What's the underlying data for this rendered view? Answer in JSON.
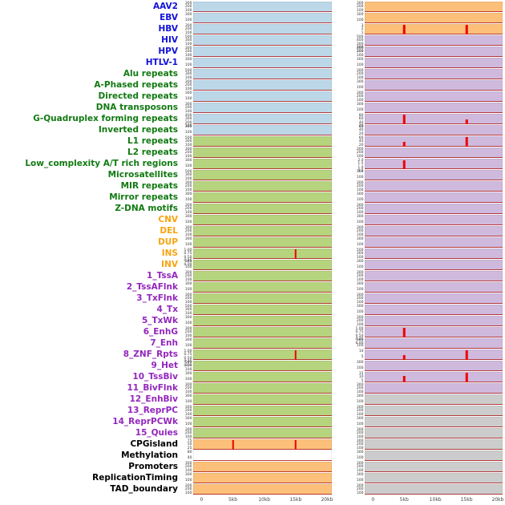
{
  "chart_data": {
    "type": "heatmap",
    "subtype": "genomic-signal-tracks",
    "title": "",
    "x_axis": {
      "range_kb": [
        0,
        20
      ],
      "ticks": [
        {
          "kb": 0,
          "label": "0"
        },
        {
          "kb": 5,
          "label": "5kb"
        },
        {
          "kb": 10,
          "label": "10kb"
        },
        {
          "kb": 15,
          "label": "15kb"
        },
        {
          "kb": 20,
          "label": "20kb"
        }
      ]
    },
    "colors": {
      "label_colors": {
        "virus": "#1212d8",
        "repeat": "#117a11",
        "sv": "#f7a410",
        "chromatin": "#9326bd",
        "other": "#000000"
      },
      "track_colors": {
        "blue": "#bcd8e8",
        "green": "#b6d37e",
        "orange": "#fcc07a",
        "purple": "#cfbade",
        "gray": "#cccccc",
        "white": "#ffffff"
      },
      "spike": "#ee0000",
      "baseline": "#b22222"
    },
    "rows": [
      {
        "label": "AAV2",
        "group": "virus",
        "left": {
          "bg": "blue",
          "yticks": [
            "300",
            "200",
            "100"
          ],
          "spikes": []
        },
        "right": {
          "bg": "orange",
          "yticks": [
            "300",
            "200",
            "100"
          ],
          "spikes": []
        }
      },
      {
        "label": "EBV",
        "group": "virus",
        "left": {
          "bg": "blue",
          "yticks": [
            "300",
            "100"
          ],
          "spikes": []
        },
        "right": {
          "bg": "orange",
          "yticks": [
            "300",
            "100"
          ],
          "spikes": []
        }
      },
      {
        "label": "HBV",
        "group": "virus",
        "left": {
          "bg": "blue",
          "yticks": [
            "300",
            "200",
            "100"
          ],
          "spikes": []
        },
        "right": {
          "bg": "orange",
          "yticks": [
            "3",
            "2",
            "1"
          ],
          "spikes": [
            {
              "kb": 5,
              "h": 0.95
            },
            {
              "kb": 15,
              "h": 0.95
            }
          ]
        }
      },
      {
        "label": "HIV",
        "group": "virus",
        "left": {
          "bg": "blue",
          "yticks": [
            "500",
            "300",
            "100"
          ],
          "spikes": []
        },
        "right": {
          "bg": "purple",
          "yticks": [
            "500",
            "400",
            "300",
            "200",
            "100"
          ],
          "spikes": []
        }
      },
      {
        "label": "HPV",
        "group": "virus",
        "left": {
          "bg": "blue",
          "yticks": [
            "300",
            "200",
            "100"
          ],
          "spikes": []
        },
        "right": {
          "bg": "purple",
          "yticks": [
            "300",
            "200",
            "100"
          ],
          "spikes": []
        }
      },
      {
        "label": "HTLV-1",
        "group": "virus",
        "left": {
          "bg": "blue",
          "yticks": [
            "300",
            "100"
          ],
          "spikes": []
        },
        "right": {
          "bg": "purple",
          "yticks": [
            "300",
            "100"
          ],
          "spikes": []
        }
      },
      {
        "label": "Alu repeats",
        "group": "repeat",
        "left": {
          "bg": "blue",
          "yticks": [
            "500",
            "300",
            "100"
          ],
          "spikes": []
        },
        "right": {
          "bg": "purple",
          "yticks": [
            "300",
            "200",
            "100"
          ],
          "spikes": []
        }
      },
      {
        "label": "A-Phased repeats",
        "group": "repeat",
        "left": {
          "bg": "blue",
          "yticks": [
            "300",
            "200",
            "100"
          ],
          "spikes": []
        },
        "right": {
          "bg": "purple",
          "yticks": [
            "300",
            "100"
          ],
          "spikes": []
        }
      },
      {
        "label": "Directed repeats",
        "group": "repeat",
        "left": {
          "bg": "blue",
          "yticks": [
            "300",
            "100"
          ],
          "spikes": []
        },
        "right": {
          "bg": "purple",
          "yticks": [
            "300",
            "200",
            "100"
          ],
          "spikes": []
        }
      },
      {
        "label": "DNA transposons",
        "group": "repeat",
        "left": {
          "bg": "blue",
          "yticks": [
            "300",
            "200",
            "100"
          ],
          "spikes": []
        },
        "right": {
          "bg": "purple",
          "yticks": [
            "300",
            "100"
          ],
          "spikes": []
        }
      },
      {
        "label": "G-Quadruplex forming repeats",
        "group": "repeat",
        "left": {
          "bg": "blue",
          "yticks": [
            "400",
            "300",
            "200",
            "100"
          ],
          "spikes": []
        },
        "right": {
          "bg": "purple",
          "yticks": [
            "80",
            "60",
            "40",
            "20"
          ],
          "spikes": [
            {
              "kb": 5,
              "h": 0.9
            },
            {
              "kb": 15,
              "h": 0.5
            }
          ]
        }
      },
      {
        "label": "Inverted repeats",
        "group": "repeat",
        "left": {
          "bg": "blue",
          "yticks": [
            "300",
            "100"
          ],
          "spikes": []
        },
        "right": {
          "bg": "purple",
          "yticks": [
            "60",
            "40",
            "20"
          ],
          "spikes": []
        }
      },
      {
        "label": "L1 repeats",
        "group": "repeat",
        "left": {
          "bg": "green",
          "yticks": [
            "500",
            "300",
            "100"
          ],
          "spikes": []
        },
        "right": {
          "bg": "purple",
          "yticks": [
            "60",
            "40",
            "20"
          ],
          "spikes": [
            {
              "kb": 5,
              "h": 0.45
            },
            {
              "kb": 15,
              "h": 0.9
            }
          ]
        }
      },
      {
        "label": "L2 repeats",
        "group": "repeat",
        "left": {
          "bg": "green",
          "yticks": [
            "300",
            "200",
            "100"
          ],
          "spikes": []
        },
        "right": {
          "bg": "purple",
          "yticks": [
            "300",
            "200",
            "100"
          ],
          "spikes": []
        }
      },
      {
        "label": "Low_complexity A/T rich regions",
        "group": "repeat",
        "left": {
          "bg": "green",
          "yticks": [
            "300",
            "100"
          ],
          "spikes": []
        },
        "right": {
          "bg": "purple",
          "yticks": [
            "2.0",
            "1.5",
            "1.0",
            "0.5"
          ],
          "spikes": [
            {
              "kb": 5,
              "h": 0.85
            }
          ]
        }
      },
      {
        "label": "Microsatellites",
        "group": "repeat",
        "left": {
          "bg": "green",
          "yticks": [
            "500",
            "300",
            "100"
          ],
          "spikes": []
        },
        "right": {
          "bg": "purple",
          "yticks": [
            "300",
            "100"
          ],
          "spikes": []
        }
      },
      {
        "label": "MIR repeats",
        "group": "repeat",
        "left": {
          "bg": "green",
          "yticks": [
            "300",
            "200",
            "100"
          ],
          "spikes": []
        },
        "right": {
          "bg": "purple",
          "yticks": [
            "300",
            "200",
            "100"
          ],
          "spikes": []
        }
      },
      {
        "label": "Mirror repeats",
        "group": "repeat",
        "left": {
          "bg": "green",
          "yticks": [
            "300",
            "100"
          ],
          "spikes": []
        },
        "right": {
          "bg": "purple",
          "yticks": [
            "300",
            "100"
          ],
          "spikes": []
        }
      },
      {
        "label": "Z-DNA motifs",
        "group": "repeat",
        "left": {
          "bg": "green",
          "yticks": [
            "300",
            "200",
            "100"
          ],
          "spikes": []
        },
        "right": {
          "bg": "purple",
          "yticks": [
            "300",
            "200",
            "100"
          ],
          "spikes": []
        }
      },
      {
        "label": "CNV",
        "group": "sv",
        "left": {
          "bg": "green",
          "yticks": [
            "300",
            "100"
          ],
          "spikes": []
        },
        "right": {
          "bg": "purple",
          "yticks": [
            "300",
            "100"
          ],
          "spikes": []
        }
      },
      {
        "label": "DEL",
        "group": "sv",
        "left": {
          "bg": "green",
          "yticks": [
            "300",
            "200",
            "100"
          ],
          "spikes": []
        },
        "right": {
          "bg": "purple",
          "yticks": [
            "300",
            "200",
            "100"
          ],
          "spikes": []
        }
      },
      {
        "label": "DUP",
        "group": "sv",
        "left": {
          "bg": "green",
          "yticks": [
            "300",
            "100"
          ],
          "spikes": []
        },
        "right": {
          "bg": "purple",
          "yticks": [
            "300",
            "100"
          ],
          "spikes": []
        }
      },
      {
        "label": "INS",
        "group": "sv",
        "left": {
          "bg": "green",
          "yticks": [
            "1.00",
            "0.75",
            "0.50",
            "0.25",
            "0.00"
          ],
          "spikes": [
            {
              "kb": 15,
              "h": 0.95
            }
          ]
        },
        "right": {
          "bg": "purple",
          "yticks": [
            "500",
            "300",
            "100"
          ],
          "spikes": []
        }
      },
      {
        "label": "INV",
        "group": "sv",
        "left": {
          "bg": "green",
          "yticks": [
            "300",
            "100"
          ],
          "spikes": []
        },
        "right": {
          "bg": "purple",
          "yticks": [
            "300",
            "100"
          ],
          "spikes": []
        }
      },
      {
        "label": "1_TssA",
        "group": "chromatin",
        "left": {
          "bg": "green",
          "yticks": [
            "300",
            "200",
            "100"
          ],
          "spikes": []
        },
        "right": {
          "bg": "purple",
          "yticks": [
            "300",
            "200",
            "100"
          ],
          "spikes": []
        }
      },
      {
        "label": "2_TssAFlnk",
        "group": "chromatin",
        "left": {
          "bg": "green",
          "yticks": [
            "300",
            "100"
          ],
          "spikes": []
        },
        "right": {
          "bg": "purple",
          "yticks": [
            "300",
            "100"
          ],
          "spikes": []
        }
      },
      {
        "label": "3_TxFlnk",
        "group": "chromatin",
        "left": {
          "bg": "green",
          "yticks": [
            "300",
            "200",
            "100"
          ],
          "spikes": []
        },
        "right": {
          "bg": "purple",
          "yticks": [
            "300",
            "200",
            "100"
          ],
          "spikes": []
        }
      },
      {
        "label": "4_Tx",
        "group": "chromatin",
        "left": {
          "bg": "green",
          "yticks": [
            "500",
            "300",
            "100"
          ],
          "spikes": []
        },
        "right": {
          "bg": "purple",
          "yticks": [
            "300",
            "100"
          ],
          "spikes": []
        }
      },
      {
        "label": "5_TxWk",
        "group": "chromatin",
        "left": {
          "bg": "green",
          "yticks": [
            "300",
            "100"
          ],
          "spikes": []
        },
        "right": {
          "bg": "purple",
          "yticks": [
            "300",
            "200",
            "100"
          ],
          "spikes": []
        }
      },
      {
        "label": "6_EnhG",
        "group": "chromatin",
        "left": {
          "bg": "green",
          "yticks": [
            "300",
            "200",
            "100"
          ],
          "spikes": []
        },
        "right": {
          "bg": "purple",
          "yticks": [
            "1.00",
            "0.75",
            "0.50",
            "0.25",
            "0.00"
          ],
          "spikes": [
            {
              "kb": 5,
              "h": 0.9
            }
          ]
        }
      },
      {
        "label": "7_Enh",
        "group": "chromatin",
        "left": {
          "bg": "green",
          "yticks": [
            "300",
            "100"
          ],
          "spikes": []
        },
        "right": {
          "bg": "purple",
          "yticks": [
            "300",
            "100"
          ],
          "spikes": []
        }
      },
      {
        "label": "8_ZNF_Rpts",
        "group": "chromatin",
        "left": {
          "bg": "green",
          "yticks": [
            "1.00",
            "0.75",
            "0.50",
            "0.25",
            "0.00"
          ],
          "spikes": [
            {
              "kb": 15,
              "h": 0.95
            }
          ]
        },
        "right": {
          "bg": "purple",
          "yticks": [
            "10",
            "5"
          ],
          "spikes": [
            {
              "kb": 5,
              "h": 0.5
            },
            {
              "kb": 15,
              "h": 0.95
            }
          ]
        }
      },
      {
        "label": "9_Het",
        "group": "chromatin",
        "left": {
          "bg": "green",
          "yticks": [
            "500",
            "300",
            "100"
          ],
          "spikes": []
        },
        "right": {
          "bg": "purple",
          "yticks": [
            "300",
            "100"
          ],
          "spikes": []
        }
      },
      {
        "label": "10_TssBiv",
        "group": "chromatin",
        "left": {
          "bg": "green",
          "yticks": [
            "300",
            "100"
          ],
          "spikes": []
        },
        "right": {
          "bg": "purple",
          "yticks": [
            "15",
            "10",
            "5"
          ],
          "spikes": [
            {
              "kb": 5,
              "h": 0.6
            },
            {
              "kb": 15,
              "h": 0.95
            }
          ]
        }
      },
      {
        "label": "11_BivFlnk",
        "group": "chromatin",
        "left": {
          "bg": "green",
          "yticks": [
            "300",
            "200",
            "100"
          ],
          "spikes": []
        },
        "right": {
          "bg": "purple",
          "yticks": [
            "300",
            "200",
            "100"
          ],
          "spikes": []
        }
      },
      {
        "label": "12_EnhBiv",
        "group": "chromatin",
        "left": {
          "bg": "green",
          "yticks": [
            "300",
            "100"
          ],
          "spikes": []
        },
        "right": {
          "bg": "gray",
          "yticks": [
            "300",
            "100"
          ],
          "spikes": []
        }
      },
      {
        "label": "13_ReprPC",
        "group": "chromatin",
        "left": {
          "bg": "green",
          "yticks": [
            "300",
            "200",
            "100"
          ],
          "spikes": []
        },
        "right": {
          "bg": "gray",
          "yticks": [
            "300",
            "200",
            "100"
          ],
          "spikes": []
        }
      },
      {
        "label": "14_ReprPCWk",
        "group": "chromatin",
        "left": {
          "bg": "green",
          "yticks": [
            "300",
            "100"
          ],
          "spikes": []
        },
        "right": {
          "bg": "gray",
          "yticks": [
            "300",
            "100"
          ],
          "spikes": []
        }
      },
      {
        "label": "15_Quies",
        "group": "chromatin",
        "left": {
          "bg": "green",
          "yticks": [
            "300",
            "200",
            "100"
          ],
          "spikes": []
        },
        "right": {
          "bg": "gray",
          "yticks": [
            "300",
            "200",
            "100"
          ],
          "spikes": []
        }
      },
      {
        "label": "CPGisland",
        "group": "other",
        "left": {
          "bg": "orange",
          "yticks": [
            "75",
            "50",
            "25"
          ],
          "spikes": [
            {
              "kb": 5,
              "h": 0.9
            },
            {
              "kb": 15,
              "h": 0.95
            }
          ]
        },
        "right": {
          "bg": "gray",
          "yticks": [
            "300",
            "200",
            "100"
          ],
          "spikes": []
        }
      },
      {
        "label": "Methylation",
        "group": "other",
        "left": {
          "bg": "white",
          "yticks": [
            "80",
            "40"
          ],
          "spikes": []
        },
        "right": {
          "bg": "gray",
          "yticks": [
            "300",
            "100"
          ],
          "spikes": []
        }
      },
      {
        "label": "Promoters",
        "group": "other",
        "left": {
          "bg": "orange",
          "yticks": [
            "300",
            "200",
            "100"
          ],
          "spikes": []
        },
        "right": {
          "bg": "gray",
          "yticks": [
            "300",
            "200",
            "100"
          ],
          "spikes": []
        }
      },
      {
        "label": "ReplicationTiming",
        "group": "other",
        "left": {
          "bg": "orange",
          "yticks": [
            "300",
            "100"
          ],
          "spikes": []
        },
        "right": {
          "bg": "gray",
          "yticks": [
            "300",
            "100"
          ],
          "spikes": []
        }
      },
      {
        "label": "TAD_boundary",
        "group": "other",
        "left": {
          "bg": "orange",
          "yticks": [
            "300",
            "200",
            "100"
          ],
          "spikes": []
        },
        "right": {
          "bg": "gray",
          "yticks": [
            "300",
            "200",
            "100"
          ],
          "spikes": []
        }
      }
    ]
  }
}
